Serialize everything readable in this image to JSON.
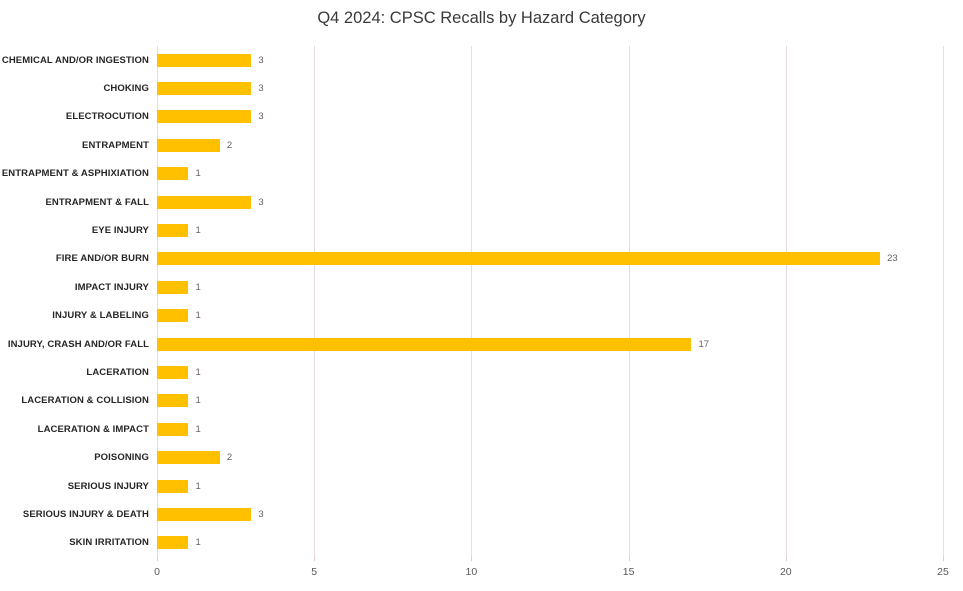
{
  "title": "Q4 2024: CPSC Recalls by Hazard Category",
  "colors": {
    "bar": "#FFC000",
    "gridline": "#e8dadf",
    "axis_line": "#e8dadf",
    "tick_mark": "#dcc9d0",
    "axis_tick_label": "#595959",
    "value_label": "#6a5f63",
    "category_label": "#262626",
    "title_text": "#3a3a3a",
    "background": "#ffffff"
  },
  "chart_data": {
    "type": "bar",
    "orientation": "horizontal",
    "title": "Q4 2024: CPSC Recalls by Hazard Category",
    "categories": [
      "CHEMICAL AND/OR INGESTION",
      "CHOKING",
      "ELECTROCUTION",
      "ENTRAPMENT",
      "ENTRAPMENT & ASPHIXIATION",
      "ENTRAPMENT & FALL",
      "EYE INJURY",
      "FIRE AND/OR BURN",
      "IMPACT INJURY",
      "INJURY & LABELING",
      "INJURY, CRASH AND/OR FALL",
      "LACERATION",
      "LACERATION & COLLISION",
      "LACERATION & IMPACT",
      "POISONING",
      "SERIOUS INJURY",
      "SERIOUS INJURY & DEATH",
      "SKIN IRRITATION"
    ],
    "values": [
      3,
      3,
      3,
      2,
      1,
      3,
      1,
      23,
      1,
      1,
      17,
      1,
      1,
      1,
      2,
      1,
      3,
      1
    ],
    "xlabel": "",
    "ylabel": "",
    "xlim": [
      0,
      25
    ],
    "x_ticks": [
      0,
      5,
      10,
      15,
      20,
      25
    ],
    "grid": true,
    "legend": false,
    "value_labels_shown": true
  }
}
